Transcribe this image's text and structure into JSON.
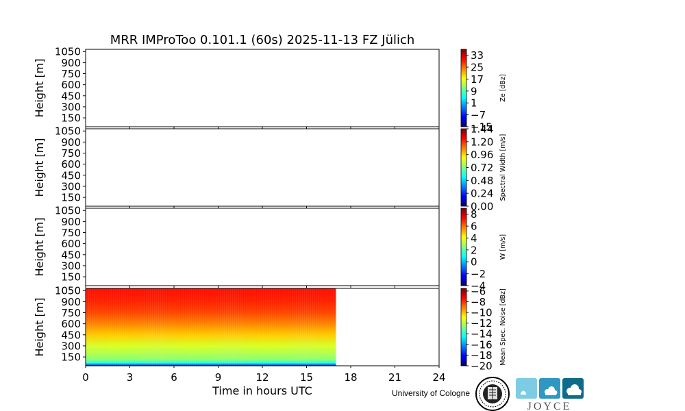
{
  "chart_data": {
    "type": "heatmap",
    "title": "MRR IMProToo 0.101.1 (60s) 2025-11-13 FZ Jülich",
    "xlabel": "Time in hours UTC",
    "xlim": [
      0,
      24
    ],
    "x_ticks": [
      0,
      3,
      6,
      9,
      12,
      15,
      18,
      21,
      24
    ],
    "panels": [
      {
        "ylabel": "Height [m]",
        "y_ticks": [
          150,
          300,
          450,
          600,
          750,
          900,
          1050
        ],
        "ylim": [
          30,
          1080
        ],
        "colorbar": {
          "label": "Ze [dBz]",
          "ticks": [
            "33",
            "25",
            "17",
            "9",
            "1",
            "−7",
            "−15"
          ],
          "range": [
            -15,
            37
          ]
        },
        "has_data": false
      },
      {
        "ylabel": "Height [m]",
        "y_ticks": [
          150,
          300,
          450,
          600,
          750,
          900,
          1050
        ],
        "ylim": [
          30,
          1080
        ],
        "colorbar": {
          "label": "Spectral Width [m/s]",
          "ticks": [
            "1.44",
            "1.20",
            "0.96",
            "0.72",
            "0.48",
            "0.24",
            "0.00"
          ],
          "range": [
            0.0,
            1.44
          ]
        },
        "has_data": false
      },
      {
        "ylabel": "Height [m]",
        "y_ticks": [
          150,
          300,
          450,
          600,
          750,
          900,
          1050
        ],
        "ylim": [
          30,
          1080
        ],
        "colorbar": {
          "label": "W [m/s]",
          "ticks": [
            "8",
            "6",
            "4",
            "2",
            "0",
            "−2",
            "−4"
          ],
          "range": [
            -4,
            9
          ]
        },
        "has_data": false
      },
      {
        "ylabel": "Height [m]",
        "y_ticks": [
          150,
          300,
          450,
          600,
          750,
          900,
          1050
        ],
        "ylim": [
          30,
          1080
        ],
        "colorbar": {
          "label": "Mean Spec. Noise [dBz]",
          "ticks": [
            "−6",
            "−8",
            "−10",
            "−12",
            "−14",
            "−16",
            "−18",
            "−20"
          ],
          "range": [
            -20,
            -5.5
          ]
        },
        "has_data": true,
        "data_time_range": [
          0,
          17
        ],
        "profile": [
          {
            "height": 30,
            "value": -19.5
          },
          {
            "height": 50,
            "value": -16
          },
          {
            "height": 70,
            "value": -14
          },
          {
            "height": 120,
            "value": -12.5
          },
          {
            "height": 300,
            "value": -11.5
          },
          {
            "height": 450,
            "value": -10.2
          },
          {
            "height": 600,
            "value": -9.2
          },
          {
            "height": 750,
            "value": -8.3
          },
          {
            "height": 900,
            "value": -7.8
          },
          {
            "height": 1080,
            "value": -7.5
          }
        ]
      }
    ]
  },
  "footer": {
    "university_text": "University of Cologne",
    "logo_text": "JOYCE",
    "icons": [
      "sun-cloud-icon",
      "cloud-icon",
      "cloud-icon"
    ],
    "icon_colors": [
      "#7ecbe4",
      "#2f97c1",
      "#0e6b8a"
    ]
  },
  "colors": {
    "jet": [
      "#00007f",
      "#0000ff",
      "#00ffff",
      "#7fff7f",
      "#ffff00",
      "#ff0000",
      "#7f0000"
    ]
  }
}
